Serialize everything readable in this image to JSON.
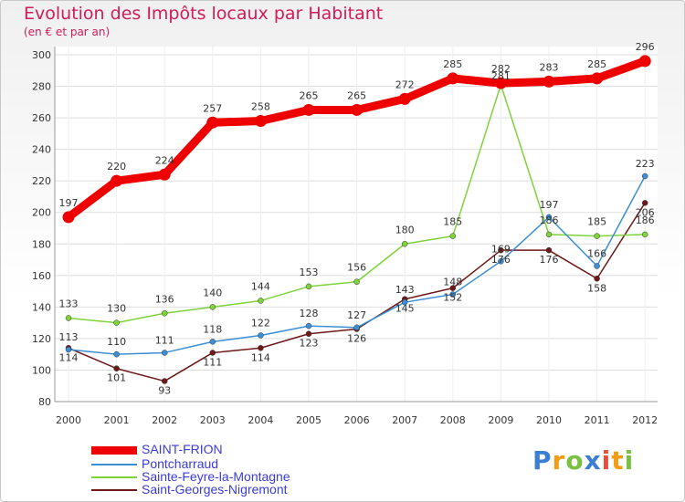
{
  "chart_data": {
    "type": "line",
    "title": "Evolution des Impôts locaux par Habitant",
    "subtitle": "(en € et par an)",
    "x": [
      "2000",
      "2001",
      "2002",
      "2003",
      "2004",
      "2005",
      "2006",
      "2007",
      "2008",
      "2009",
      "2010",
      "2011",
      "2012"
    ],
    "ylim": [
      80,
      300
    ],
    "yticks": [
      80,
      100,
      120,
      140,
      160,
      180,
      200,
      220,
      240,
      260,
      280,
      300
    ],
    "grid": true,
    "legend_position": "bottom-left",
    "series": [
      {
        "name": "SAINT-FRION",
        "color": "#ee0000",
        "values": [
          197,
          220,
          224,
          257,
          258,
          265,
          265,
          272,
          285,
          282,
          283,
          285,
          296
        ]
      },
      {
        "name": "Pontcharraud",
        "color": "#3a8fd6",
        "values": [
          113,
          110,
          111,
          118,
          122,
          128,
          127,
          143,
          148,
          169,
          197,
          166,
          223
        ]
      },
      {
        "name": "Sainte-Feyre-la-Montagne",
        "color": "#7ed23a",
        "values": [
          133,
          130,
          136,
          140,
          144,
          153,
          156,
          180,
          185,
          281,
          186,
          185,
          186
        ]
      },
      {
        "name": "Saint-Georges-Nigremont",
        "color": "#6e1818",
        "values": [
          114,
          101,
          93,
          111,
          114,
          123,
          126,
          145,
          152,
          176,
          176,
          158,
          206
        ]
      }
    ]
  },
  "logo": {
    "letters": [
      "P",
      "r",
      "o",
      "x",
      "i",
      "t",
      "i"
    ],
    "colors": [
      "#3b7fd4",
      "#f39c12",
      "#7ac143",
      "#3b7fd4",
      "#e74c3c",
      "#f39c12",
      "#7ac143"
    ]
  }
}
